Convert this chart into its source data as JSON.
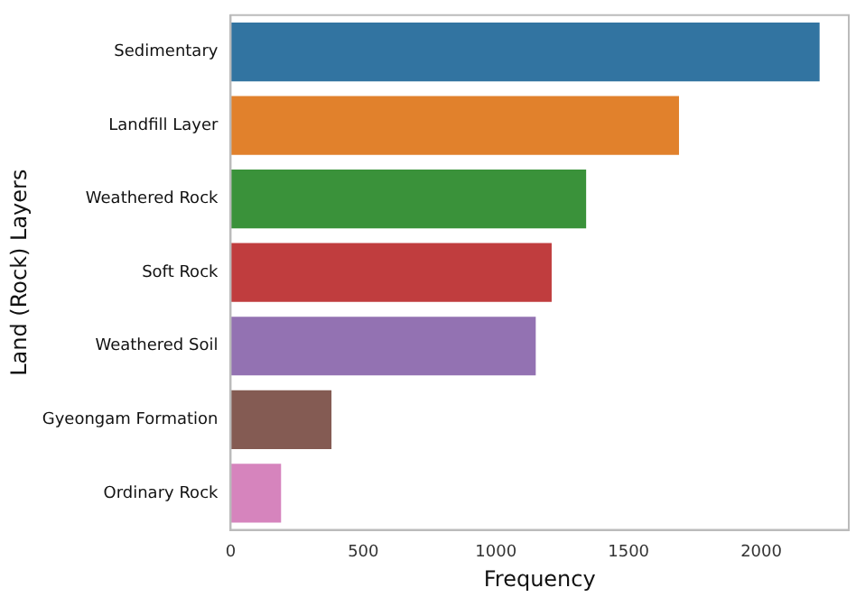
{
  "chart_data": {
    "type": "bar",
    "orientation": "horizontal",
    "xlabel": "Frequency",
    "ylabel": "Land (Rock) Layers",
    "categories": [
      "Sedimentary",
      "Landfill Layer",
      "Weathered Rock",
      "Soft Rock",
      "Weathered Soil",
      "Gyeongam Formation",
      "Ordinary Rock"
    ],
    "values": [
      2220,
      1690,
      1340,
      1210,
      1150,
      380,
      190
    ],
    "colors": [
      "#3274a1",
      "#e1812c",
      "#3a923a",
      "#c03d3e",
      "#9372b2",
      "#845b53",
      "#d684bd"
    ],
    "xlim": [
      0,
      2330
    ],
    "xticks": [
      0,
      500,
      1000,
      1500,
      2000
    ],
    "grid": false,
    "legend": false
  }
}
